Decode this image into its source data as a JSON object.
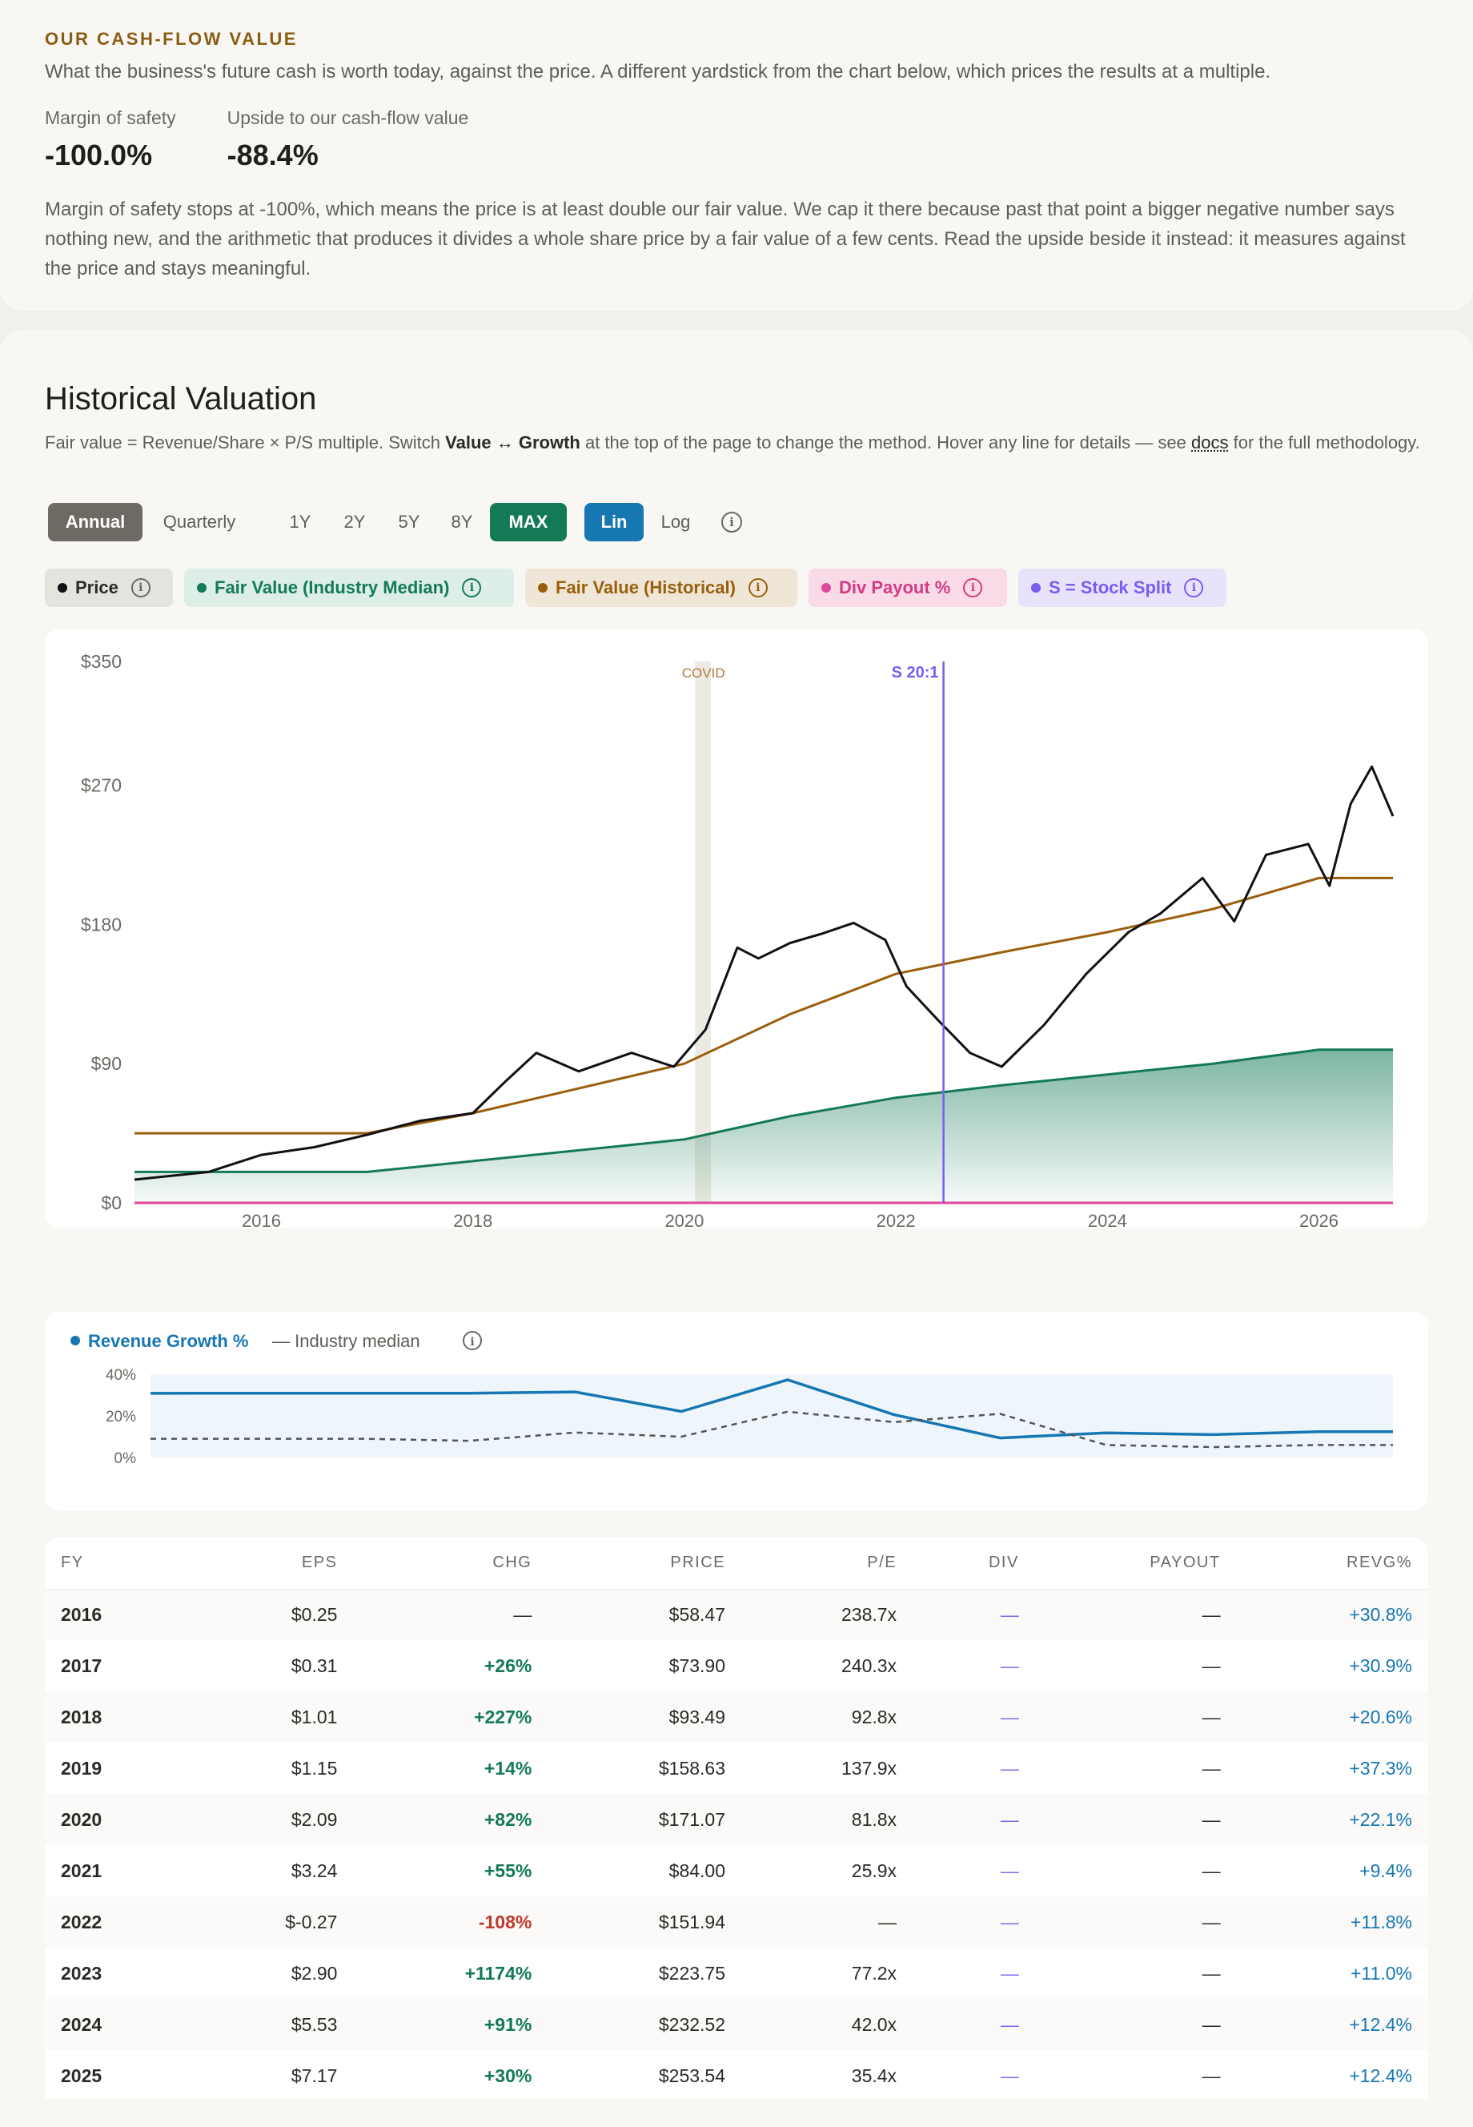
{
  "cashflow": {
    "eyebrow": "OUR CASH-FLOW VALUE",
    "subtitle": "What the business's future cash is worth today, against the price. A different yardstick from the chart below, which prices the results at a multiple.",
    "margin_label": "Margin of safety",
    "margin_value": "-100.0%",
    "upside_label": "Upside to our cash-flow value",
    "upside_value": "-88.4%",
    "note": "Margin of safety stops at -100%, which means the price is at least double our fair value. We cap it there because past that point a bigger negative number says nothing new, and the arithmetic that produces it divides a whole share price by a fair value of a few cents. Read the upside beside it instead: it measures against the price and stays meaningful."
  },
  "valuation": {
    "title": "Historical Valuation",
    "desc_a": "Fair value = Revenue/Share × P/S multiple. Switch ",
    "desc_b": "Value ↔ Growth",
    "desc_c": " at the top of the page to change the method. Hover any line for details — see ",
    "desc_link": "docs",
    "desc_d": " for the full methodology.",
    "periods": [
      "Annual",
      "Quarterly"
    ],
    "ranges": [
      "1Y",
      "2Y",
      "5Y",
      "8Y",
      "MAX"
    ],
    "scales": [
      "Lin",
      "Log"
    ],
    "legend": {
      "price": "Price",
      "fv_industry": "Fair Value (Industry Median)",
      "fv_hist": "Fair Value (Historical)",
      "div_payout": "Div Payout %",
      "split": "S = Stock Split"
    },
    "colors": {
      "price": "#111111",
      "fv_industry": "#137a55",
      "fv_hist": "#9a5f0c",
      "div": "#e0489a",
      "split": "#7b5cf0",
      "growth": "#1677b2"
    }
  },
  "chart_data": [
    {
      "type": "line",
      "ylim": [
        0,
        350
      ],
      "y_ticks": [
        "$350",
        "$270",
        "$180",
        "$90",
        "$0"
      ],
      "x_ticks": [
        "2016",
        "2018",
        "2020",
        "2022",
        "2024",
        "2026"
      ],
      "annotations": {
        "covid": "COVID",
        "split": "S 20:1"
      },
      "series": [
        {
          "name": "Price",
          "x": [
            2014.8,
            2015.5,
            2016.0,
            2016.5,
            2017.0,
            2017.5,
            2018.0,
            2018.3,
            2018.6,
            2019.0,
            2019.5,
            2019.9,
            2020.2,
            2020.5,
            2020.7,
            2021.0,
            2021.3,
            2021.6,
            2021.9,
            2022.1,
            2022.4,
            2022.7,
            2023.0,
            2023.4,
            2023.8,
            2024.2,
            2024.5,
            2024.9,
            2025.2,
            2025.5,
            2025.9,
            2026.1,
            2026.3,
            2026.5,
            2026.7
          ],
          "y": [
            15,
            20,
            31,
            36,
            44,
            53,
            58,
            78,
            97,
            85,
            97,
            88,
            112,
            165,
            158,
            168,
            174,
            181,
            170,
            140,
            118,
            97,
            88,
            115,
            148,
            175,
            187,
            210,
            182,
            225,
            232,
            205,
            258,
            282,
            250
          ]
        },
        {
          "name": "Fair Value (Historical)",
          "x": [
            2014.8,
            2017.0,
            2018.0,
            2020.0,
            2021.0,
            2022.0,
            2023.0,
            2024.0,
            2025.0,
            2026.0,
            2026.7
          ],
          "y": [
            45,
            45,
            58,
            90,
            122,
            148,
            162,
            175,
            190,
            210,
            210
          ]
        },
        {
          "name": "Fair Value (Industry Median)",
          "x": [
            2014.8,
            2017.0,
            2018.0,
            2020.0,
            2021.0,
            2022.0,
            2023.0,
            2024.0,
            2025.0,
            2026.0,
            2026.7
          ],
          "y": [
            20,
            20,
            27,
            41,
            56,
            68,
            76,
            83,
            90,
            99,
            99
          ]
        },
        {
          "name": "Div Payout %",
          "x": [
            2014.8,
            2026.7
          ],
          "y": [
            0,
            0
          ]
        }
      ]
    },
    {
      "type": "area",
      "ylim": [
        0,
        40
      ],
      "y_ticks": [
        "40%",
        "20%",
        "0%"
      ],
      "legend": {
        "growth": "Revenue Growth %",
        "median": "— Industry median"
      },
      "series": [
        {
          "name": "Revenue Growth %",
          "x": [
            2015,
            2016,
            2017,
            2018,
            2019,
            2020,
            2021,
            2022,
            2023,
            2024,
            2025,
            2026,
            2026.7
          ],
          "y": [
            30.8,
            30.9,
            30.9,
            30.9,
            31.5,
            22.1,
            37.3,
            20.6,
            9.4,
            11.8,
            11.0,
            12.4,
            12.4
          ]
        },
        {
          "name": "Industry median",
          "x": [
            2015,
            2016,
            2017,
            2018,
            2019,
            2020,
            2021,
            2022,
            2023,
            2024,
            2025,
            2026,
            2026.7
          ],
          "y": [
            9,
            9,
            9,
            8,
            12,
            10,
            22,
            17,
            21,
            6,
            5,
            6,
            6
          ]
        }
      ]
    }
  ],
  "table": {
    "headers": [
      "FY",
      "EPS",
      "CHG",
      "PRICE",
      "P/E",
      "DIV",
      "PAYOUT",
      "REVG%"
    ],
    "rows": [
      {
        "fy": "2016",
        "eps": "$0.25",
        "chg": "—",
        "chg_type": "flat",
        "price": "$58.47",
        "pe": "238.7x",
        "div": "—",
        "payout": "—",
        "revg": "+30.8%"
      },
      {
        "fy": "2017",
        "eps": "$0.31",
        "chg": "+26%",
        "chg_type": "pos",
        "price": "$73.90",
        "pe": "240.3x",
        "div": "—",
        "payout": "—",
        "revg": "+30.9%"
      },
      {
        "fy": "2018",
        "eps": "$1.01",
        "chg": "+227%",
        "chg_type": "pos",
        "price": "$93.49",
        "pe": "92.8x",
        "div": "—",
        "payout": "—",
        "revg": "+20.6%"
      },
      {
        "fy": "2019",
        "eps": "$1.15",
        "chg": "+14%",
        "chg_type": "pos",
        "price": "$158.63",
        "pe": "137.9x",
        "div": "—",
        "payout": "—",
        "revg": "+37.3%"
      },
      {
        "fy": "2020",
        "eps": "$2.09",
        "chg": "+82%",
        "chg_type": "pos",
        "price": "$171.07",
        "pe": "81.8x",
        "div": "—",
        "payout": "—",
        "revg": "+22.1%"
      },
      {
        "fy": "2021",
        "eps": "$3.24",
        "chg": "+55%",
        "chg_type": "pos",
        "price": "$84.00",
        "pe": "25.9x",
        "div": "—",
        "payout": "—",
        "revg": "+9.4%"
      },
      {
        "fy": "2022",
        "eps": "$-0.27",
        "chg": "-108%",
        "chg_type": "neg",
        "price": "$151.94",
        "pe": "—",
        "div": "—",
        "payout": "—",
        "revg": "+11.8%"
      },
      {
        "fy": "2023",
        "eps": "$2.90",
        "chg": "+1174%",
        "chg_type": "pos",
        "price": "$223.75",
        "pe": "77.2x",
        "div": "—",
        "payout": "—",
        "revg": "+11.0%"
      },
      {
        "fy": "2024",
        "eps": "$5.53",
        "chg": "+91%",
        "chg_type": "pos",
        "price": "$232.52",
        "pe": "42.0x",
        "div": "—",
        "payout": "—",
        "revg": "+12.4%"
      },
      {
        "fy": "2025",
        "eps": "$7.17",
        "chg": "+30%",
        "chg_type": "pos",
        "price": "$253.54",
        "pe": "35.4x",
        "div": "—",
        "payout": "—",
        "revg": "+12.4%"
      }
    ]
  }
}
